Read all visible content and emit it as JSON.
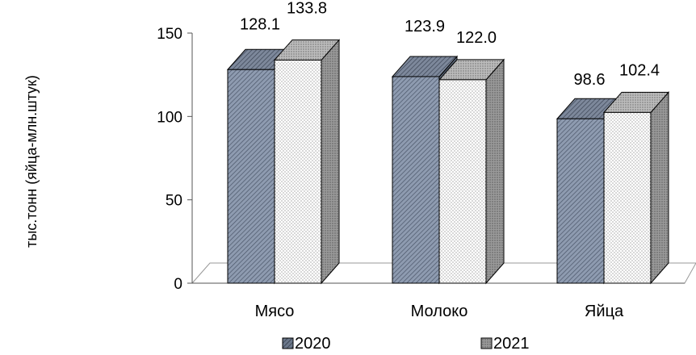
{
  "chart_data": {
    "type": "bar",
    "categories": [
      "Мясо",
      "Молоко",
      "Яйца"
    ],
    "series": [
      {
        "name": "2020",
        "values": [
          128.1,
          123.9,
          98.6
        ],
        "data_labels": [
          "128.1",
          "123.9",
          "98.6"
        ],
        "color": "#8e9bb0",
        "pattern": "hatch"
      },
      {
        "name": "2021",
        "values": [
          133.8,
          122.0,
          102.4
        ],
        "data_labels": [
          "133.8",
          "122.0",
          "102.4"
        ],
        "color": "#ffffff",
        "pattern": "dots"
      }
    ],
    "ylabel": "тыс.тонн (яйца-млн.штук)",
    "xlabel": "",
    "ylim": [
      0,
      150
    ],
    "yticks": [
      0,
      50,
      100,
      150
    ],
    "legend": "bottom",
    "three_d": true,
    "grid": false
  }
}
